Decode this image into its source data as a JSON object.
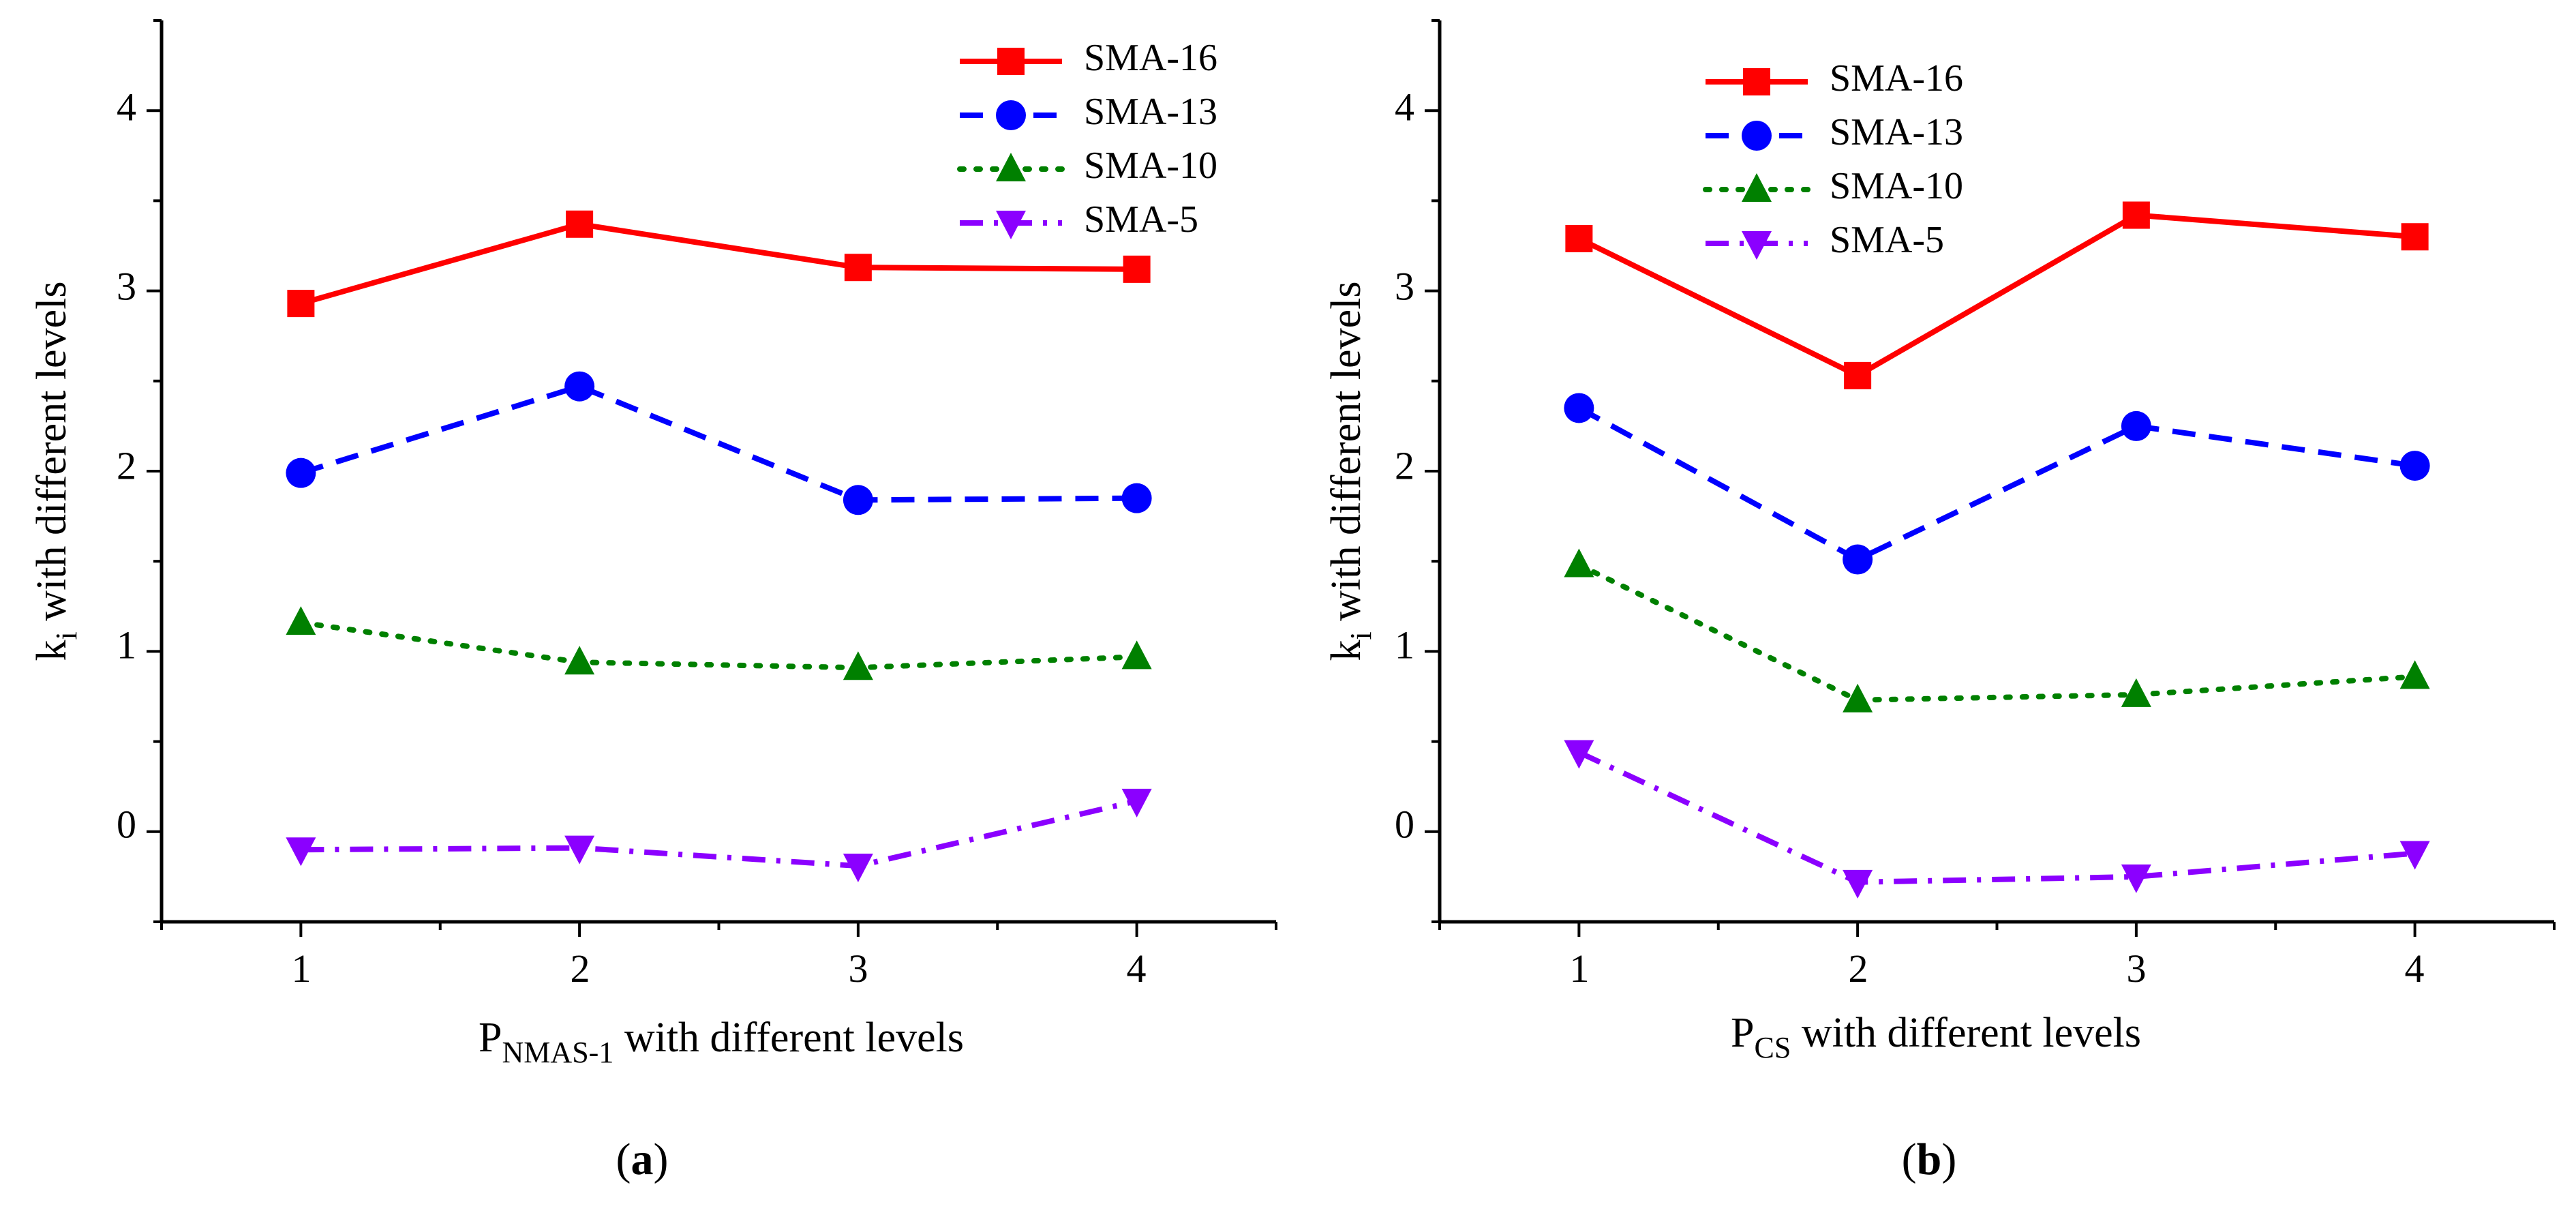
{
  "chart_data": [
    {
      "type": "line",
      "panel": "a",
      "caption": "(a)",
      "caption_parts": {
        "open": "(",
        "letter": "a",
        "close": ")"
      },
      "x": [
        1,
        2,
        3,
        4
      ],
      "xticks": [
        "1",
        "2",
        "3",
        "4"
      ],
      "yticks": [
        "0",
        "1",
        "2",
        "3",
        "4"
      ],
      "xlim": [
        0.5,
        4.5
      ],
      "ylim": [
        -0.5,
        4.5
      ],
      "xlabel": "P_NMAS-1 with different levels",
      "xlabel_main": "P",
      "xlabel_sub": "NMAS-1",
      "xlabel_rest": " with different levels",
      "ylabel": "k_i with different levels",
      "ylabel_main": "k",
      "ylabel_sub": "i",
      "ylabel_rest": " with different levels",
      "legend_position": "top-right",
      "series": [
        {
          "name": "SMA-16",
          "values": [
            2.93,
            3.37,
            3.13,
            3.12
          ],
          "color": "#ff0000",
          "marker": "square",
          "dash": "solid"
        },
        {
          "name": "SMA-13",
          "values": [
            1.99,
            2.47,
            1.84,
            1.85
          ],
          "color": "#0000ff",
          "marker": "circle",
          "dash": "dash"
        },
        {
          "name": "SMA-10",
          "values": [
            1.16,
            0.94,
            0.91,
            0.97
          ],
          "color": "#008000",
          "marker": "triangle-up",
          "dash": "dot"
        },
        {
          "name": "SMA-5",
          "values": [
            -0.1,
            -0.09,
            -0.19,
            0.17
          ],
          "color": "#8b00ff",
          "marker": "triangle-down",
          "dash": "dashdot"
        }
      ]
    },
    {
      "type": "line",
      "panel": "b",
      "caption": "(b)",
      "caption_parts": {
        "open": "(",
        "letter": "b",
        "close": ")"
      },
      "x": [
        1,
        2,
        3,
        4
      ],
      "xticks": [
        "1",
        "2",
        "3",
        "4"
      ],
      "yticks": [
        "0",
        "1",
        "2",
        "3",
        "4"
      ],
      "xlim": [
        0.5,
        4.5
      ],
      "ylim": [
        -0.5,
        4.5
      ],
      "xlabel": "P_CS with different levels",
      "xlabel_main": "P",
      "xlabel_sub": "CS",
      "xlabel_rest": " with different levels",
      "ylabel": "k_i with different levels",
      "ylabel_main": "k",
      "ylabel_sub": "i",
      "ylabel_rest": " with different levels",
      "legend_position": "top-left",
      "series": [
        {
          "name": "SMA-16",
          "values": [
            3.29,
            2.53,
            3.42,
            3.3
          ],
          "color": "#ff0000",
          "marker": "square",
          "dash": "solid"
        },
        {
          "name": "SMA-13",
          "values": [
            2.35,
            1.51,
            2.25,
            2.03
          ],
          "color": "#0000ff",
          "marker": "circle",
          "dash": "dash"
        },
        {
          "name": "SMA-10",
          "values": [
            1.48,
            0.73,
            0.76,
            0.86
          ],
          "color": "#008000",
          "marker": "triangle-up",
          "dash": "dot"
        },
        {
          "name": "SMA-5",
          "values": [
            0.44,
            -0.28,
            -0.25,
            -0.12
          ],
          "color": "#8b00ff",
          "marker": "triangle-down",
          "dash": "dashdot"
        }
      ]
    }
  ]
}
